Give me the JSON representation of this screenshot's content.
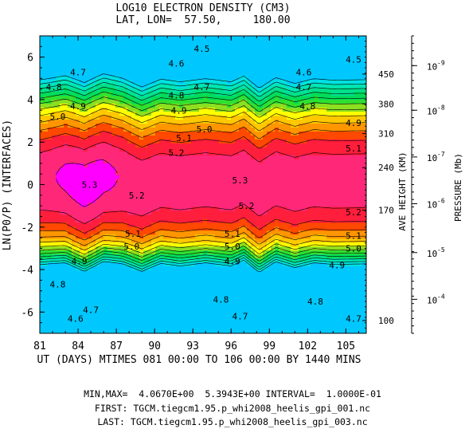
{
  "chart_data": {
    "type": "filled-contour",
    "title": "LOG10 ELECTRON DENSITY (CM3)",
    "subtitle": "LAT, LON=  57.50,     180.00",
    "xlabel": "UT (DAYS) MTIMES 081 00:00 TO 106 00:00 BY 1440 MINS",
    "ylabel": "LN(P0/P) (INTERFACES)",
    "right_axis1_label": "AVE HEIGHT (KM)",
    "right_axis2_label": "PRESSURE (Mb)",
    "xlim": [
      81,
      106.6
    ],
    "ylim": [
      -7,
      7
    ],
    "x_ticks": [
      81,
      84,
      87,
      90,
      93,
      96,
      99,
      102,
      105
    ],
    "y_ticks": [
      6,
      4,
      2,
      0,
      -2,
      -4,
      -6
    ],
    "height_ticks": [
      {
        "label": "450",
        "z": 5.2
      },
      {
        "label": "380",
        "z": 3.8
      },
      {
        "label": "310",
        "z": 2.4
      },
      {
        "label": "240",
        "z": 0.8
      },
      {
        "label": "170",
        "z": -1.2
      },
      {
        "label": "100",
        "z": -6.4
      }
    ],
    "pressure_ticks": [
      {
        "mant": "10",
        "exp": "-9",
        "z": 5.6
      },
      {
        "mant": "10",
        "exp": "-8",
        "z": 3.5
      },
      {
        "mant": "10",
        "exp": "-7",
        "z": 1.3
      },
      {
        "mant": "10",
        "exp": "-6",
        "z": -0.9
      },
      {
        "mant": "10",
        "exp": "-5",
        "z": -3.2
      },
      {
        "mant": "10",
        "exp": "-4",
        "z": -5.4
      }
    ],
    "contour_levels": [
      4.1,
      4.2,
      4.3,
      4.4,
      4.5,
      4.6,
      4.7,
      4.8,
      4.9,
      5.0,
      5.1,
      5.2,
      5.3
    ],
    "min": "4.0670E+00",
    "max": "5.3943E+00",
    "interval": "1.0000E-01",
    "band_colors": [
      "#00c8ff",
      "#00e0e0",
      "#00e6b4",
      "#00e08c",
      "#00dc5a",
      "#30e030",
      "#8ce020",
      "#ffff00",
      "#ffc800",
      "#ff9600",
      "#ff4800",
      "#ff1e3c",
      "#ff2878",
      "#ff00ff"
    ],
    "contour_labels": [
      {
        "text": "4.5",
        "x": 93.7,
        "z": 6.4
      },
      {
        "text": "4.6",
        "x": 91.7,
        "z": 5.7
      },
      {
        "text": "4.7",
        "x": 84.0,
        "z": 5.3
      },
      {
        "text": "4.5",
        "x": 105.6,
        "z": 5.9
      },
      {
        "text": "4.6",
        "x": 101.7,
        "z": 5.3
      },
      {
        "text": "4.7",
        "x": 93.7,
        "z": 4.6
      },
      {
        "text": "4.7",
        "x": 101.7,
        "z": 4.6
      },
      {
        "text": "4.8",
        "x": 82.1,
        "z": 4.6
      },
      {
        "text": "4.8",
        "x": 91.7,
        "z": 4.2
      },
      {
        "text": "4.8",
        "x": 102.0,
        "z": 3.7
      },
      {
        "text": "4.9",
        "x": 84.0,
        "z": 3.7
      },
      {
        "text": "4.9",
        "x": 91.9,
        "z": 3.5
      },
      {
        "text": "4.9",
        "x": 105.6,
        "z": 2.9
      },
      {
        "text": "5.0",
        "x": 82.4,
        "z": 3.2
      },
      {
        "text": "5.0",
        "x": 93.9,
        "z": 2.6
      },
      {
        "text": "5.1",
        "x": 92.3,
        "z": 2.2
      },
      {
        "text": "5.1",
        "x": 105.6,
        "z": 1.7
      },
      {
        "text": "5.2",
        "x": 91.7,
        "z": 1.5
      },
      {
        "text": "5.3",
        "x": 84.9,
        "z": 0.0
      },
      {
        "text": "5.2",
        "x": 88.6,
        "z": -0.5
      },
      {
        "text": "5.3",
        "x": 96.7,
        "z": 0.2
      },
      {
        "text": "5.2",
        "x": 97.2,
        "z": -1.0
      },
      {
        "text": "5.2",
        "x": 105.6,
        "z": -1.3
      },
      {
        "text": "5.1",
        "x": 88.3,
        "z": -2.3
      },
      {
        "text": "5.1",
        "x": 96.1,
        "z": -2.3
      },
      {
        "text": "5.1",
        "x": 105.6,
        "z": -2.4
      },
      {
        "text": "5.0",
        "x": 88.2,
        "z": -2.9
      },
      {
        "text": "5.0",
        "x": 96.1,
        "z": -2.9
      },
      {
        "text": "5.0",
        "x": 105.6,
        "z": -3.0
      },
      {
        "text": "4.9",
        "x": 84.1,
        "z": -3.6
      },
      {
        "text": "4.9",
        "x": 96.1,
        "z": -3.6
      },
      {
        "text": "4.9",
        "x": 104.3,
        "z": -3.8
      },
      {
        "text": "4.8",
        "x": 82.4,
        "z": -4.7
      },
      {
        "text": "4.8",
        "x": 95.2,
        "z": -5.4
      },
      {
        "text": "4.8",
        "x": 102.6,
        "z": -5.5
      },
      {
        "text": "4.7",
        "x": 85.0,
        "z": -5.9
      },
      {
        "text": "4.7",
        "x": 96.7,
        "z": -6.2
      },
      {
        "text": "4.7",
        "x": 105.6,
        "z": -6.3
      },
      {
        "text": "4.6",
        "x": 83.8,
        "z": -6.3
      }
    ]
  },
  "footer": {
    "minmax": "MIN,MAX=  4.0670E+00  5.3943E+00 INTERVAL=  1.0000E-01",
    "first": "FIRST: TGCM.tiegcm1.95.p_whi2008_heelis_gpi_001.nc",
    "last": "LAST: TGCM.tiegcm1.95.p_whi2008_heelis_gpi_003.nc"
  }
}
